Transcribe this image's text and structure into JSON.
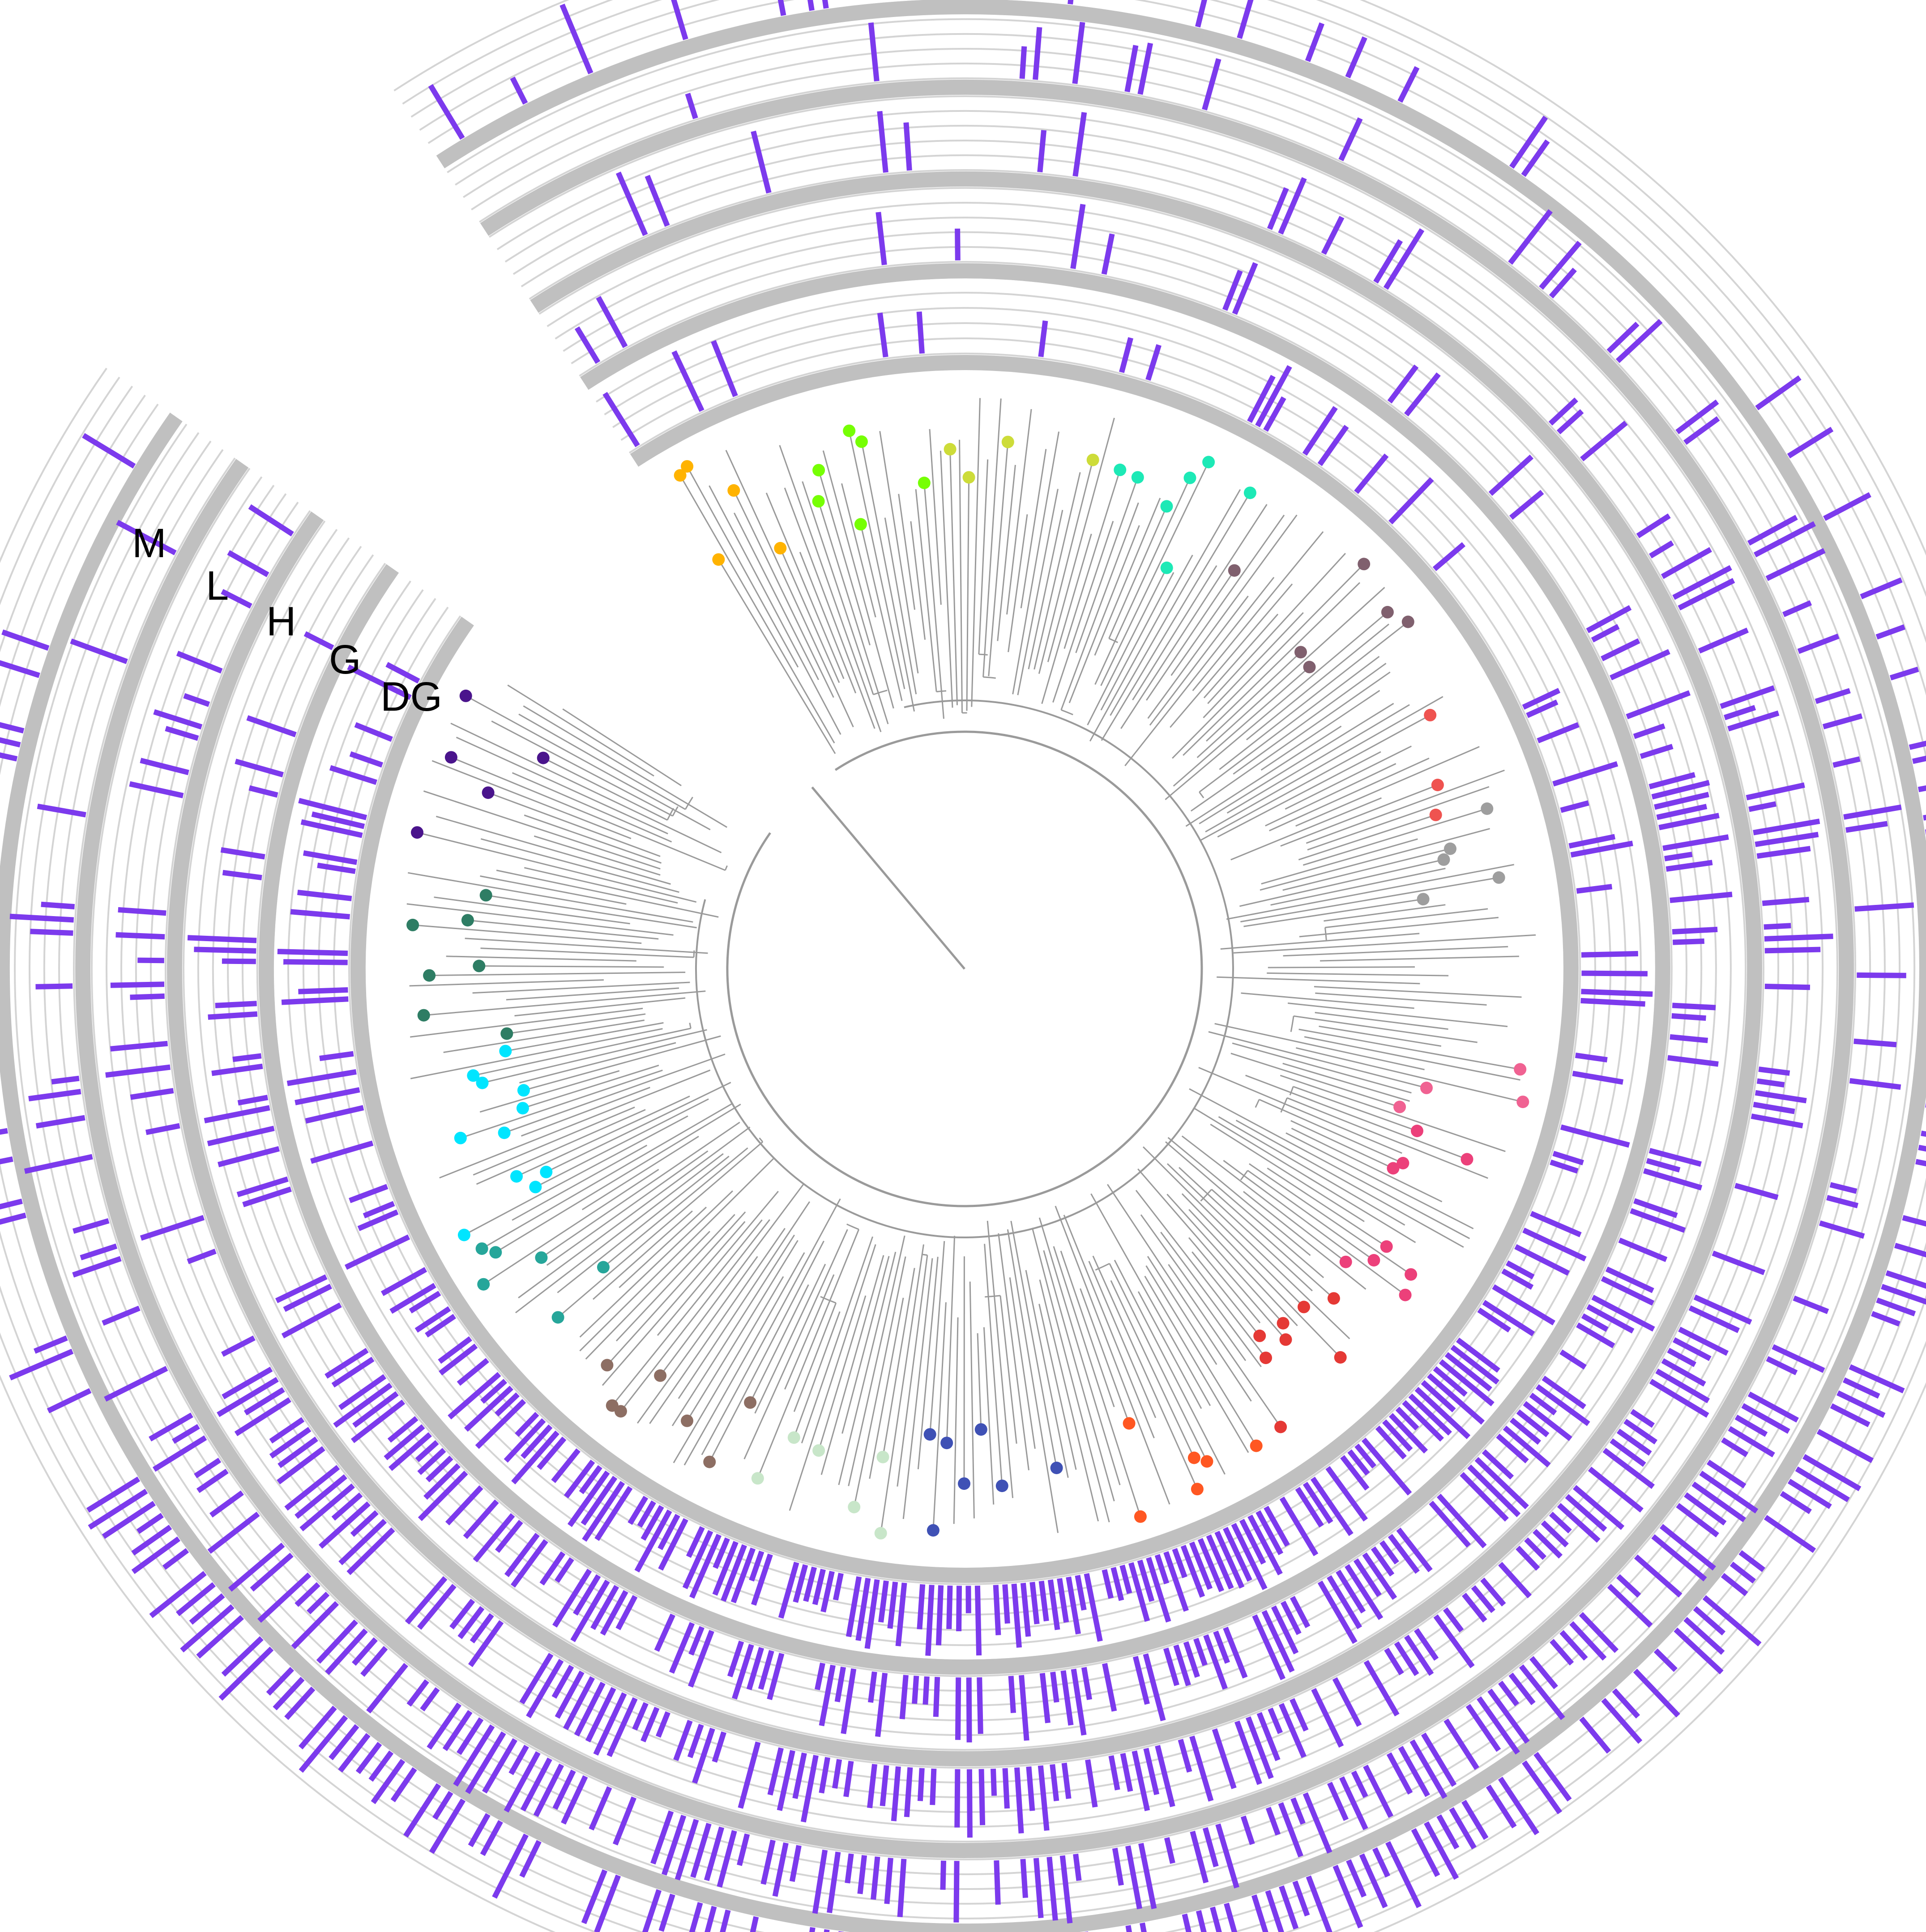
{
  "figure": {
    "ring_labels": [
      "DG",
      "G",
      "H",
      "L",
      "M"
    ],
    "colors": {
      "bar": "#7c3aed",
      "band": "#c0c0c0",
      "gridline": "#d4d4d4",
      "tree": "#9a9a9a",
      "clades": [
        "#f06292",
        "#ec407a",
        "#e53935",
        "#ff5722",
        "#3f51b5",
        "#c8e6c9",
        "#8d6e63",
        "#26a69a",
        "#00e5ff",
        "#2e7d64",
        "#4a148c",
        "#9c27b0",
        "#ffb300",
        "#76ff03",
        "#cddc39",
        "#1de9b6",
        "#80606e",
        "#ef5350",
        "#9e9e9e"
      ]
    }
  }
}
